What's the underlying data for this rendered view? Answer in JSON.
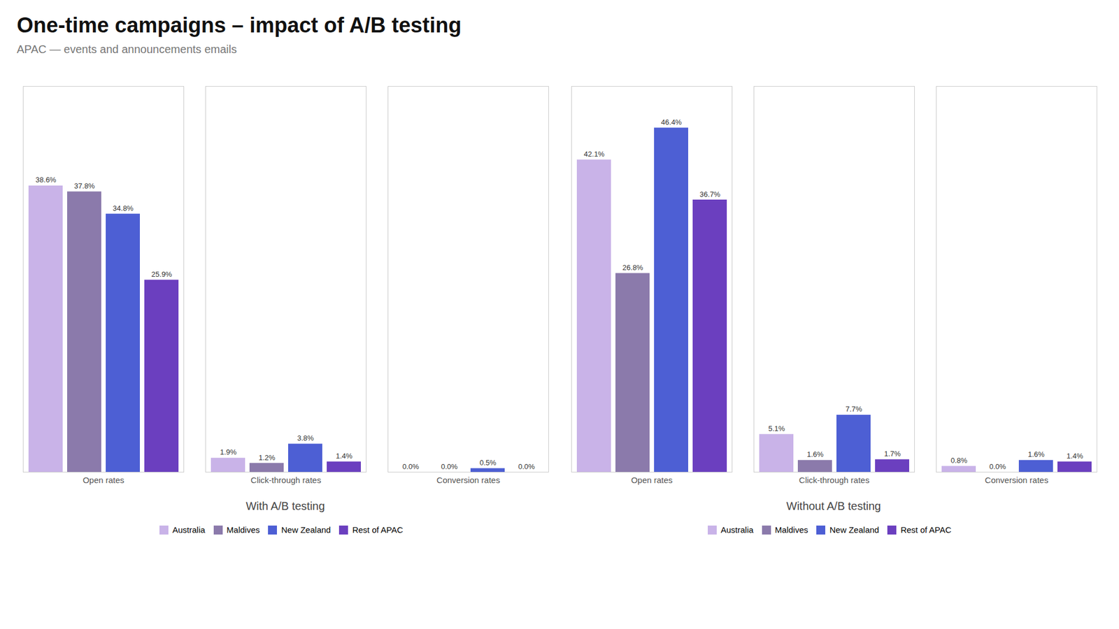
{
  "title": "One-time campaigns – impact of A/B testing",
  "subtitle": "APAC — events and announcements emails",
  "chart_data": [
    {
      "type": "bar",
      "title": "With A/B testing",
      "categories": [
        "Open rates",
        "Click-through rates",
        "Conversion rates"
      ],
      "series": [
        {
          "name": "Australia",
          "color": "#c9b3e8",
          "values": [
            38.6,
            1.9,
            0.0
          ],
          "value_labels": [
            "38.6%",
            "1.9%",
            "0.0%"
          ]
        },
        {
          "name": "Maldives",
          "color": "#8b7aab",
          "values": [
            37.8,
            1.2,
            0.0
          ],
          "value_labels": [
            "37.8%",
            "1.2%",
            "0.0%"
          ]
        },
        {
          "name": "New Zealand",
          "color": "#4d5fd4",
          "values": [
            34.8,
            3.8,
            0.5
          ],
          "value_labels": [
            "34.8%",
            "3.8%",
            "0.5%"
          ]
        },
        {
          "name": "Rest of APAC",
          "color": "#6b3fbf",
          "values": [
            25.9,
            1.4,
            0.0
          ],
          "value_labels": [
            "25.9%",
            "1.4%",
            "0.0%"
          ]
        }
      ],
      "ylim": [
        0,
        52
      ],
      "tick_labels": "x",
      "data_labels": true,
      "legend": "bottom"
    },
    {
      "type": "bar",
      "title": "Without A/B testing",
      "categories": [
        "Open rates",
        "Click-through rates",
        "Conversion rates"
      ],
      "series": [
        {
          "name": "Australia",
          "color": "#c9b3e8",
          "values": [
            42.1,
            5.1,
            0.8
          ],
          "value_labels": [
            "42.1%",
            "5.1%",
            "0.8%"
          ]
        },
        {
          "name": "Maldives",
          "color": "#8b7aab",
          "values": [
            26.8,
            1.6,
            0.0
          ],
          "value_labels": [
            "26.8%",
            "1.6%",
            "0.0%"
          ]
        },
        {
          "name": "New Zealand",
          "color": "#4d5fd4",
          "values": [
            46.4,
            7.7,
            1.6
          ],
          "value_labels": [
            "46.4%",
            "7.7%",
            "1.6%"
          ]
        },
        {
          "name": "Rest of APAC",
          "color": "#6b3fbf",
          "values": [
            36.7,
            1.7,
            1.4
          ],
          "value_labels": [
            "36.7%",
            "1.7%",
            "1.4%"
          ]
        }
      ],
      "ylim": [
        0,
        52
      ],
      "tick_labels": "x",
      "data_labels": true,
      "legend": "bottom"
    }
  ]
}
